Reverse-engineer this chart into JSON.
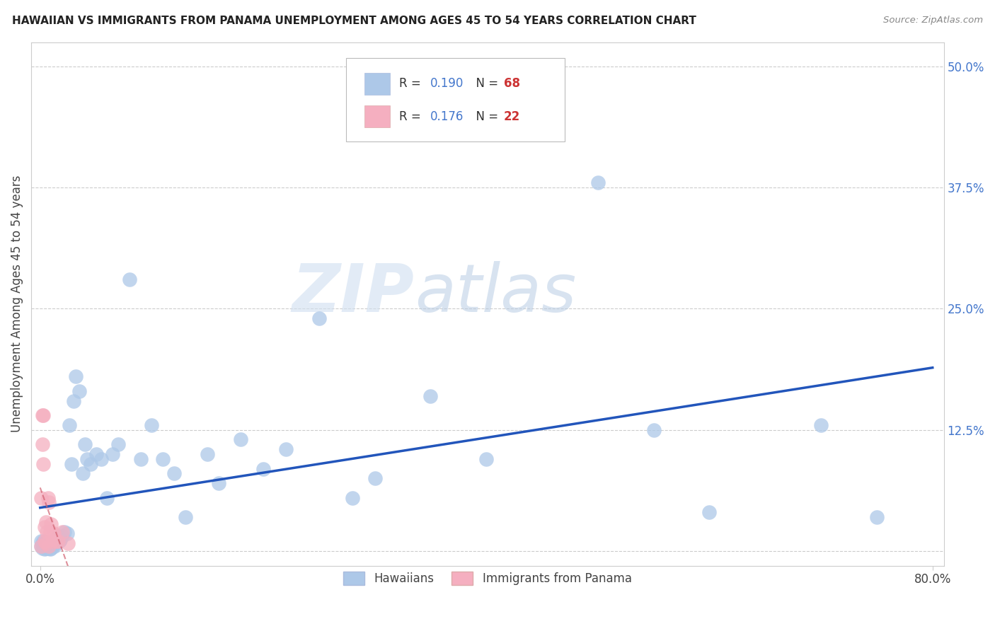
{
  "title": "HAWAIIAN VS IMMIGRANTS FROM PANAMA UNEMPLOYMENT AMONG AGES 45 TO 54 YEARS CORRELATION CHART",
  "source": "Source: ZipAtlas.com",
  "ylabel_label": "Unemployment Among Ages 45 to 54 years",
  "right_ytick_vals": [
    0.0,
    0.125,
    0.25,
    0.375,
    0.5
  ],
  "right_ytick_labels": [
    "",
    "12.5%",
    "25.0%",
    "37.5%",
    "50.0%"
  ],
  "hawaiians_R": 0.19,
  "hawaiians_N": 68,
  "panama_R": 0.176,
  "panama_N": 22,
  "hawaiians_color": "#adc8e8",
  "panama_color": "#f5afc0",
  "hawaiians_line_color": "#2255bb",
  "panama_line_color": "#d06070",
  "watermark_zip": "ZIP",
  "watermark_atlas": "atlas",
  "xlim": [
    0.0,
    0.8
  ],
  "ylim": [
    0.0,
    0.52
  ],
  "hawaiians_x": [
    0.001,
    0.001,
    0.002,
    0.002,
    0.003,
    0.003,
    0.004,
    0.004,
    0.005,
    0.005,
    0.005,
    0.006,
    0.006,
    0.006,
    0.007,
    0.007,
    0.008,
    0.008,
    0.009,
    0.009,
    0.01,
    0.01,
    0.011,
    0.012,
    0.013,
    0.014,
    0.015,
    0.016,
    0.017,
    0.018,
    0.02,
    0.022,
    0.024,
    0.026,
    0.028,
    0.03,
    0.032,
    0.035,
    0.038,
    0.04,
    0.042,
    0.045,
    0.05,
    0.055,
    0.06,
    0.065,
    0.07,
    0.08,
    0.09,
    0.1,
    0.11,
    0.12,
    0.13,
    0.15,
    0.16,
    0.18,
    0.2,
    0.22,
    0.25,
    0.28,
    0.3,
    0.35,
    0.4,
    0.5,
    0.55,
    0.6,
    0.7,
    0.75
  ],
  "hawaiians_y": [
    0.01,
    0.005,
    0.008,
    0.003,
    0.01,
    0.005,
    0.008,
    0.002,
    0.005,
    0.003,
    0.008,
    0.005,
    0.003,
    0.008,
    0.005,
    0.003,
    0.008,
    0.003,
    0.005,
    0.002,
    0.008,
    0.003,
    0.005,
    0.01,
    0.005,
    0.008,
    0.012,
    0.015,
    0.01,
    0.012,
    0.015,
    0.02,
    0.018,
    0.13,
    0.09,
    0.155,
    0.18,
    0.165,
    0.08,
    0.11,
    0.095,
    0.09,
    0.1,
    0.095,
    0.055,
    0.1,
    0.11,
    0.28,
    0.095,
    0.13,
    0.095,
    0.08,
    0.035,
    0.1,
    0.07,
    0.115,
    0.085,
    0.105,
    0.24,
    0.055,
    0.075,
    0.16,
    0.095,
    0.38,
    0.125,
    0.04,
    0.13,
    0.035
  ],
  "panama_x": [
    0.001,
    0.001,
    0.002,
    0.002,
    0.003,
    0.003,
    0.004,
    0.004,
    0.005,
    0.005,
    0.006,
    0.007,
    0.008,
    0.008,
    0.009,
    0.01,
    0.011,
    0.012,
    0.014,
    0.016,
    0.02,
    0.025
  ],
  "panama_y": [
    0.055,
    0.005,
    0.14,
    0.11,
    0.14,
    0.09,
    0.025,
    0.01,
    0.03,
    0.008,
    0.02,
    0.055,
    0.05,
    0.005,
    0.02,
    0.028,
    0.01,
    0.018,
    0.01,
    0.01,
    0.02,
    0.008
  ]
}
